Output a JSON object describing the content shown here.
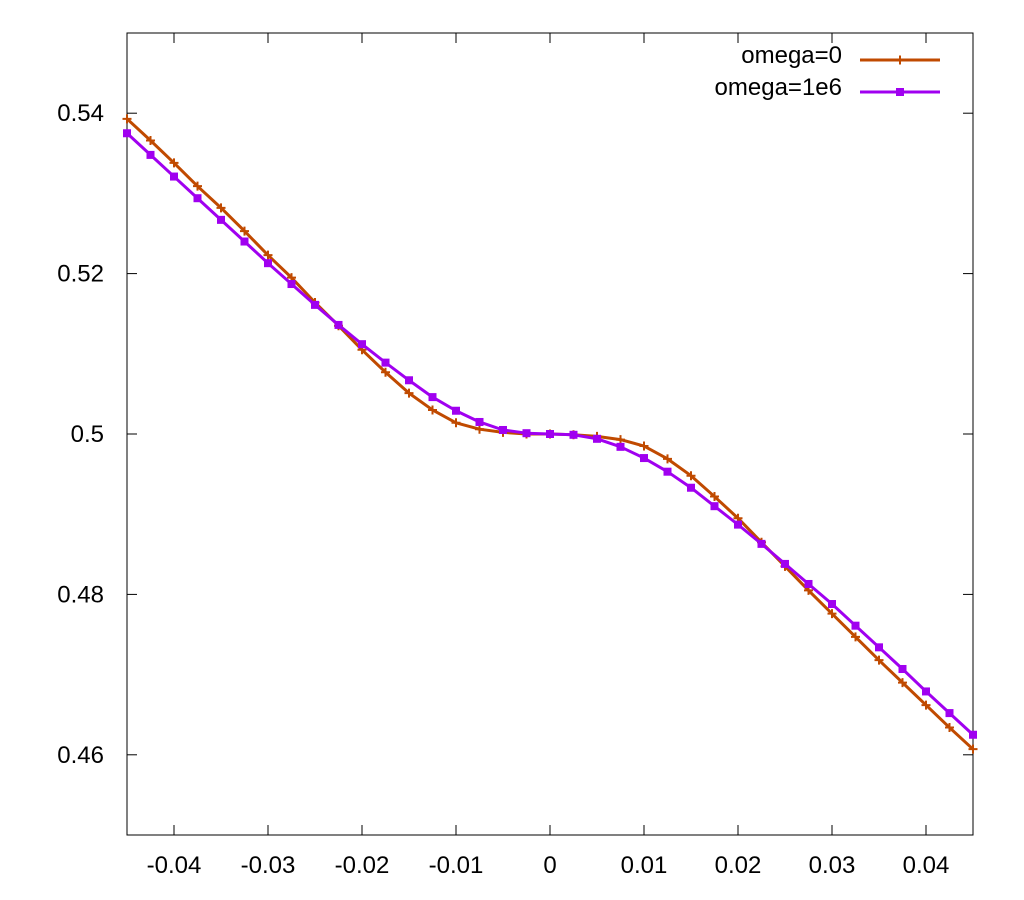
{
  "chart_data": {
    "type": "line",
    "xlim": [
      -0.045,
      0.045
    ],
    "ylim": [
      0.45,
      0.55
    ],
    "x_ticks": [
      {
        "value": -0.04,
        "label": "-0.04"
      },
      {
        "value": -0.03,
        "label": "-0.03"
      },
      {
        "value": -0.02,
        "label": "-0.02"
      },
      {
        "value": -0.01,
        "label": "-0.01"
      },
      {
        "value": 0,
        "label": "0"
      },
      {
        "value": 0.01,
        "label": "0.01"
      },
      {
        "value": 0.02,
        "label": "0.02"
      },
      {
        "value": 0.03,
        "label": "0.03"
      },
      {
        "value": 0.04,
        "label": "0.04"
      }
    ],
    "y_ticks": [
      {
        "value": 0.46,
        "label": "0.46"
      },
      {
        "value": 0.48,
        "label": "0.48"
      },
      {
        "value": 0.5,
        "label": "0.5"
      },
      {
        "value": 0.52,
        "label": "0.52"
      },
      {
        "value": 0.54,
        "label": "0.54"
      }
    ],
    "grid": false,
    "legend_position": "top-right",
    "x": [
      -0.045,
      -0.0425,
      -0.04,
      -0.0375,
      -0.035,
      -0.0325,
      -0.03,
      -0.0275,
      -0.025,
      -0.0225,
      -0.02,
      -0.0175,
      -0.015,
      -0.0125,
      -0.01,
      -0.0075,
      -0.005,
      -0.0025,
      0,
      0.0025,
      0.005,
      0.0075,
      0.01,
      0.0125,
      0.015,
      0.0175,
      0.02,
      0.0225,
      0.025,
      0.0275,
      0.03,
      0.0325,
      0.035,
      0.0375,
      0.04,
      0.0425,
      0.045
    ],
    "series": [
      {
        "name": "omega=0",
        "color": "#c04a00",
        "marker": "plus",
        "values": [
          0.5393,
          0.5366,
          0.5338,
          0.5309,
          0.5282,
          0.5253,
          0.5223,
          0.5195,
          0.5164,
          0.5135,
          0.5105,
          0.5077,
          0.5051,
          0.503,
          0.5014,
          0.5006,
          0.5002,
          0.5,
          0.5,
          0.4999,
          0.4997,
          0.4993,
          0.4985,
          0.4969,
          0.4948,
          0.4922,
          0.4895,
          0.4865,
          0.4835,
          0.4805,
          0.4776,
          0.4747,
          0.4718,
          0.469,
          0.4662,
          0.4634,
          0.4607
        ]
      },
      {
        "name": "omega=1e6",
        "color": "#a000f0",
        "marker": "square",
        "values": [
          0.5375,
          0.5348,
          0.5321,
          0.5294,
          0.5267,
          0.524,
          0.5213,
          0.5187,
          0.5161,
          0.5136,
          0.5112,
          0.5089,
          0.5067,
          0.5046,
          0.5029,
          0.5015,
          0.5005,
          0.5001,
          0.5,
          0.4999,
          0.4994,
          0.4984,
          0.497,
          0.4953,
          0.4933,
          0.491,
          0.4887,
          0.4863,
          0.4838,
          0.4813,
          0.4788,
          0.4761,
          0.4734,
          0.4707,
          0.4679,
          0.4652,
          0.4625
        ]
      }
    ]
  }
}
